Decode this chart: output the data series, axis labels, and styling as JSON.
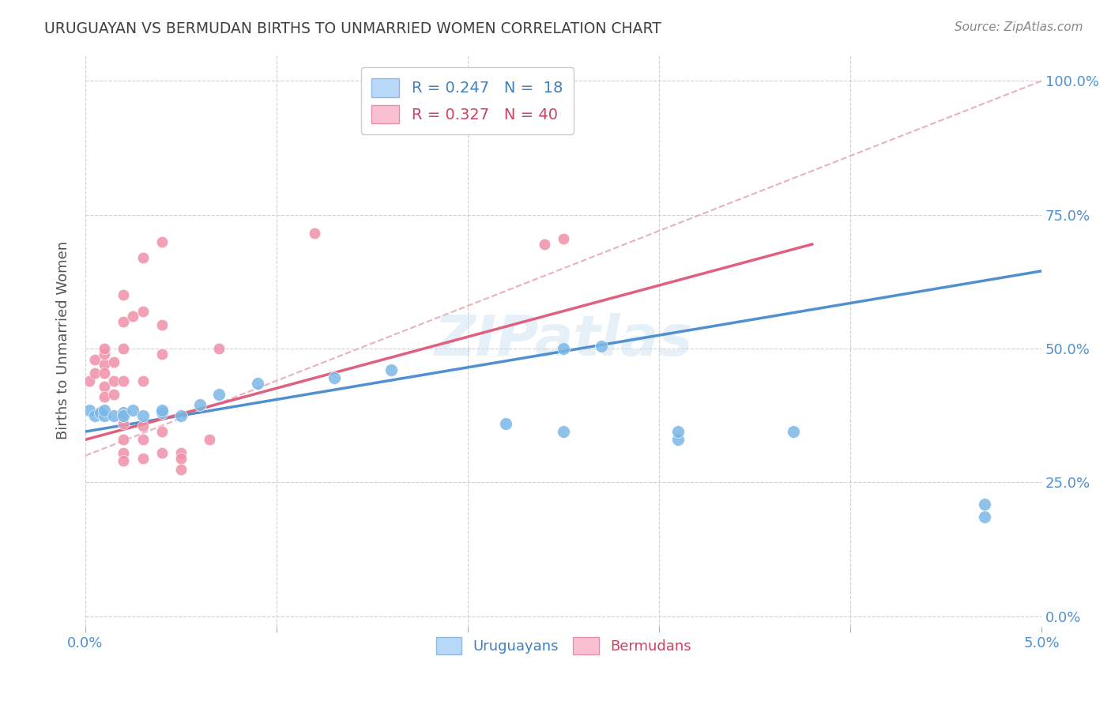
{
  "title": "URUGUAYAN VS BERMUDAN BIRTHS TO UNMARRIED WOMEN CORRELATION CHART",
  "source": "Source: ZipAtlas.com",
  "xlim": [
    0.0,
    0.05
  ],
  "ylim": [
    -0.02,
    1.05
  ],
  "ylabel": "Births to Unmarried Women",
  "watermark": "ZIPatlas",
  "blue_scatter": [
    [
      0.0002,
      0.385
    ],
    [
      0.0005,
      0.375
    ],
    [
      0.0008,
      0.38
    ],
    [
      0.001,
      0.375
    ],
    [
      0.001,
      0.385
    ],
    [
      0.0015,
      0.375
    ],
    [
      0.002,
      0.38
    ],
    [
      0.002,
      0.375
    ],
    [
      0.0025,
      0.385
    ],
    [
      0.003,
      0.375
    ],
    [
      0.004,
      0.38
    ],
    [
      0.004,
      0.385
    ],
    [
      0.005,
      0.375
    ],
    [
      0.006,
      0.395
    ],
    [
      0.007,
      0.415
    ],
    [
      0.009,
      0.435
    ],
    [
      0.013,
      0.445
    ],
    [
      0.016,
      0.46
    ],
    [
      0.022,
      0.36
    ],
    [
      0.025,
      0.345
    ],
    [
      0.025,
      0.5
    ],
    [
      0.027,
      0.505
    ],
    [
      0.031,
      0.33
    ],
    [
      0.031,
      0.345
    ],
    [
      0.037,
      0.345
    ],
    [
      0.047,
      0.21
    ],
    [
      0.047,
      0.185
    ]
  ],
  "pink_scatter": [
    [
      0.0002,
      0.44
    ],
    [
      0.0005,
      0.48
    ],
    [
      0.0005,
      0.455
    ],
    [
      0.001,
      0.47
    ],
    [
      0.001,
      0.49
    ],
    [
      0.001,
      0.5
    ],
    [
      0.001,
      0.455
    ],
    [
      0.001,
      0.43
    ],
    [
      0.001,
      0.41
    ],
    [
      0.0015,
      0.475
    ],
    [
      0.0015,
      0.44
    ],
    [
      0.0015,
      0.415
    ],
    [
      0.002,
      0.6
    ],
    [
      0.002,
      0.55
    ],
    [
      0.002,
      0.5
    ],
    [
      0.002,
      0.44
    ],
    [
      0.002,
      0.36
    ],
    [
      0.002,
      0.33
    ],
    [
      0.002,
      0.305
    ],
    [
      0.002,
      0.29
    ],
    [
      0.0025,
      0.56
    ],
    [
      0.003,
      0.67
    ],
    [
      0.003,
      0.57
    ],
    [
      0.003,
      0.44
    ],
    [
      0.003,
      0.355
    ],
    [
      0.003,
      0.33
    ],
    [
      0.003,
      0.295
    ],
    [
      0.004,
      0.7
    ],
    [
      0.004,
      0.545
    ],
    [
      0.004,
      0.49
    ],
    [
      0.004,
      0.345
    ],
    [
      0.004,
      0.305
    ],
    [
      0.005,
      0.305
    ],
    [
      0.005,
      0.295
    ],
    [
      0.005,
      0.275
    ],
    [
      0.0065,
      0.33
    ],
    [
      0.007,
      0.5
    ],
    [
      0.012,
      0.715
    ],
    [
      0.024,
      0.695
    ],
    [
      0.025,
      0.705
    ]
  ],
  "blue_line": {
    "x": [
      0.0,
      0.05
    ],
    "y": [
      0.345,
      0.645
    ]
  },
  "pink_line": {
    "x": [
      0.0,
      0.038
    ],
    "y": [
      0.33,
      0.695
    ]
  },
  "pink_dashed_line": {
    "x": [
      0.0,
      0.05
    ],
    "y": [
      0.3,
      1.0
    ]
  },
  "blue_color": "#7ab8e8",
  "pink_color": "#f090a8",
  "blue_line_color": "#5090d0",
  "pink_line_color": "#e06080",
  "pink_dash_color": "#e8b0c0",
  "grid_color": "#d0d0d0",
  "title_color": "#404040",
  "axis_label_color": "#5090d0",
  "ylabel_color": "#555555",
  "background_color": "#ffffff"
}
